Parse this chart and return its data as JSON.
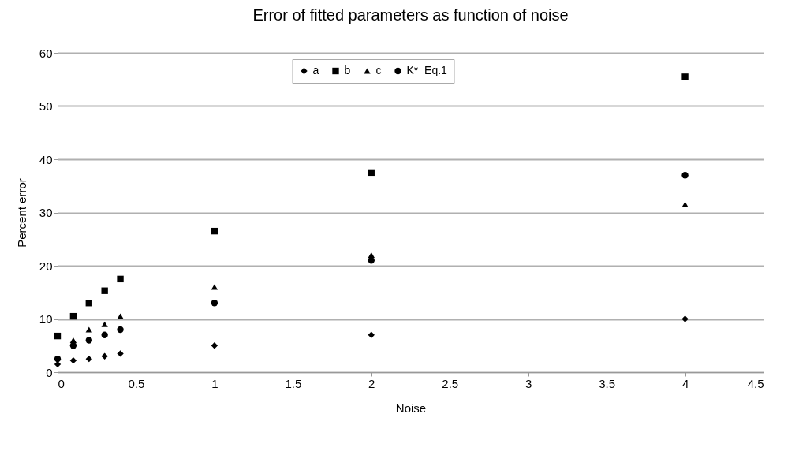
{
  "chart_data": {
    "type": "scatter",
    "title": "Error of fitted parameters as function of noise",
    "xlabel": "Noise",
    "ylabel": "Percent error",
    "x": [
      0,
      0.1,
      0.2,
      0.3,
      0.4,
      1,
      2,
      4
    ],
    "series": [
      {
        "name": "a",
        "color": "#000000",
        "marker": "diamond",
        "values": [
          1.5,
          2.2,
          2.5,
          3,
          3.5,
          5,
          7,
          10
        ]
      },
      {
        "name": "b",
        "color": "#000000",
        "marker": "square",
        "values": [
          6.8,
          10.5,
          13,
          15.3,
          17.5,
          26.5,
          37.5,
          55.5
        ]
      },
      {
        "name": "c",
        "color": "#000000",
        "marker": "triangle",
        "values": [
          null,
          6,
          8,
          9,
          10.5,
          16,
          22,
          31.5
        ]
      },
      {
        "name": "K*_Eq.1",
        "color": "#000000",
        "marker": "circle",
        "values": [
          2.5,
          5,
          6,
          7,
          8,
          13,
          21,
          37
        ]
      }
    ],
    "xlim": [
      0,
      4.5
    ],
    "xticks": [
      0,
      0.5,
      1,
      1.5,
      2,
      2.5,
      3,
      3.5,
      4,
      4.5
    ],
    "ylim": [
      0,
      60
    ],
    "yticks": [
      0,
      10,
      20,
      30,
      40,
      50,
      60
    ],
    "grid": "y",
    "legend": "top"
  }
}
